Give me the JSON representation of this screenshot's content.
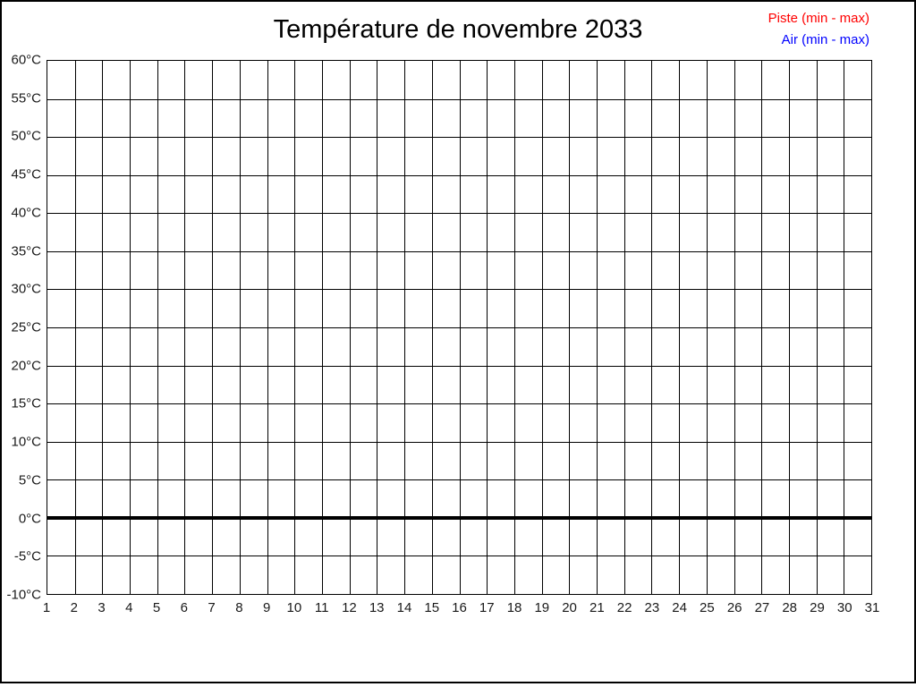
{
  "page": {
    "background_color": "#ffffff",
    "frame_color": "#000000"
  },
  "header": {
    "title": "Température de novembre 2033"
  },
  "legend": {
    "entries": [
      {
        "label": "Piste (min - max)",
        "color": "#ff0000"
      },
      {
        "label": "Air (min - max)",
        "color": "#0000ff"
      }
    ]
  },
  "chart_data": {
    "type": "line",
    "title": "Température de novembre 2033",
    "xlabel": "",
    "ylabel": "",
    "xlim": [
      1,
      31
    ],
    "ylim": [
      -10,
      60
    ],
    "xticks": [
      1,
      2,
      3,
      4,
      5,
      6,
      7,
      8,
      9,
      10,
      11,
      12,
      13,
      14,
      15,
      16,
      17,
      18,
      19,
      20,
      21,
      22,
      23,
      24,
      25,
      26,
      27,
      28,
      29,
      30,
      31
    ],
    "ytick_values": [
      60,
      55,
      50,
      45,
      40,
      35,
      30,
      25,
      20,
      15,
      10,
      5,
      0,
      -5,
      -10
    ],
    "ytick_labels": [
      "60°C",
      "55°C",
      "50°C",
      "45°C",
      "40°C",
      "35°C",
      "30°C",
      "25°C",
      "20°C",
      "15°C",
      "10°C",
      "5°C",
      "0°C",
      "-5°C",
      "-10°C"
    ],
    "grid": true,
    "grid_color": "#000000",
    "zero_line_value": 0,
    "legend_position": "top-right",
    "series": [
      {
        "name": "Piste (min - max)",
        "color": "#ff0000",
        "x": [],
        "values": []
      },
      {
        "name": "Air (min - max)",
        "color": "#0000ff",
        "x": [],
        "values": []
      }
    ]
  }
}
